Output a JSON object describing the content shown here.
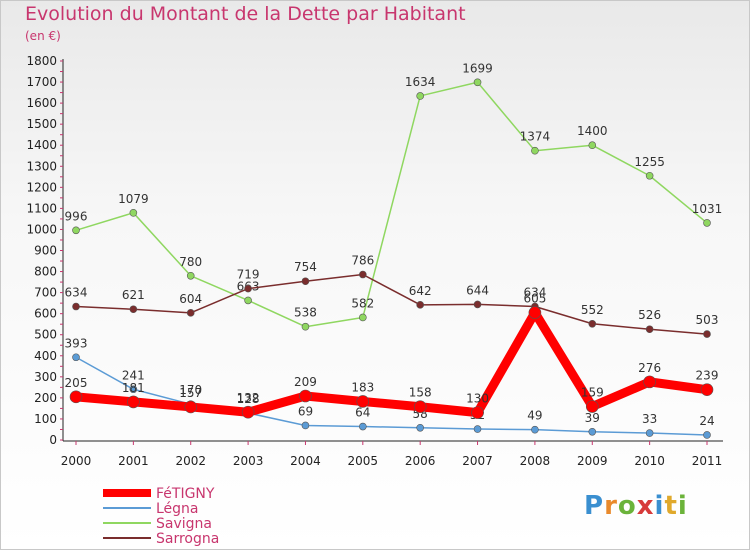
{
  "title": "Evolution du Montant de la Dette par Habitant",
  "subtitle": "(en €)",
  "logo": "Proxiti",
  "chart_data": {
    "type": "line",
    "categories": [
      "2000",
      "2001",
      "2002",
      "2003",
      "2004",
      "2005",
      "2006",
      "2007",
      "2008",
      "2009",
      "2010",
      "2011"
    ],
    "ylim": [
      0,
      1800
    ],
    "y_ticks": [
      "0",
      "100",
      "200",
      "300",
      "400",
      "500",
      "600",
      "700",
      "800",
      "900",
      "1000",
      "1100",
      "1200",
      "1300",
      "1400",
      "1500",
      "1600",
      "1700",
      "1800"
    ],
    "grid": false,
    "legend_position": "bottom-left",
    "series": [
      {
        "name": "Savigna",
        "color": "#8fd760",
        "values": [
          996,
          1079,
          780,
          663,
          538,
          582,
          1634,
          1699,
          1374,
          1400,
          1255,
          1031
        ],
        "labels": [
          "996",
          "1079",
          "780",
          "663",
          "538",
          "582",
          "1634",
          "1699",
          "1374",
          "1400",
          "1255",
          "1031"
        ]
      },
      {
        "name": "Sarrogna",
        "color": "#7a2d2d",
        "values": [
          634,
          621,
          604,
          719,
          754,
          786,
          642,
          644,
          634,
          552,
          526,
          503
        ],
        "labels": [
          "634",
          "621",
          "604",
          "719",
          "754",
          "786",
          "642",
          "644",
          "634",
          "552",
          "526",
          "503"
        ]
      },
      {
        "name": "Légna",
        "color": "#5b9bd5",
        "values": [
          393,
          241,
          170,
          128,
          69,
          64,
          58,
          52,
          49,
          39,
          33,
          24
        ],
        "labels": [
          "393",
          "241",
          "170",
          "128",
          "69",
          "64",
          "58",
          "52",
          "49",
          "39",
          "33",
          "24"
        ]
      },
      {
        "name": "FéTIGNY",
        "color": "#ff0000",
        "values": [
          205,
          181,
          157,
          132,
          209,
          183,
          158,
          130,
          605,
          159,
          276,
          239
        ],
        "labels": [
          "205",
          "181",
          "157",
          "132",
          "209",
          "183",
          "158",
          "130",
          "605",
          "159",
          "276",
          "239"
        ]
      }
    ]
  }
}
